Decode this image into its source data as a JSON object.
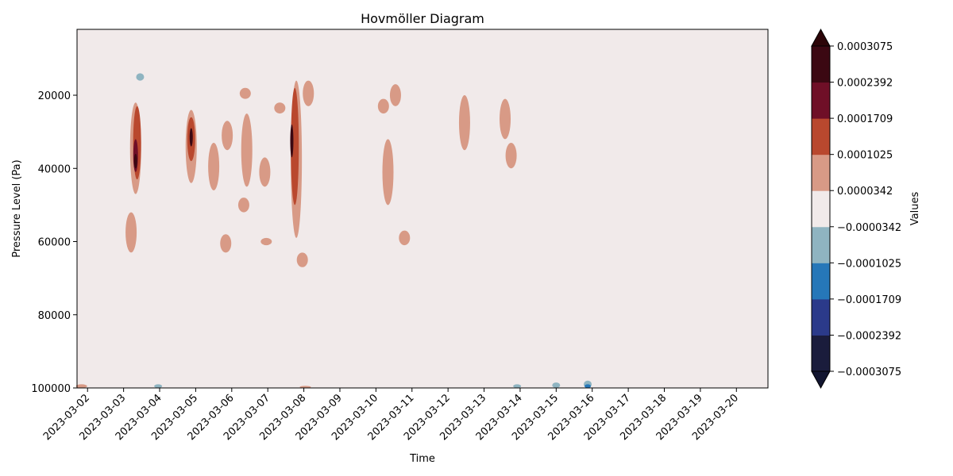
{
  "chart_data": {
    "type": "heatmap",
    "subtype": "filled-contour",
    "title": "Hovmöller Diagram",
    "xlabel": "Time",
    "ylabel": "Pressure Level (Pa)",
    "colorbar_label": "Values",
    "x_ticks": [
      "2023-03-02",
      "2023-03-03",
      "2023-03-04",
      "2023-03-05",
      "2023-03-06",
      "2023-03-07",
      "2023-03-08",
      "2023-03-09",
      "2023-03-10",
      "2023-03-11",
      "2023-03-12",
      "2023-03-13",
      "2023-03-14",
      "2023-03-15",
      "2023-03-16",
      "2023-03-17",
      "2023-03-18",
      "2023-03-19",
      "2023-03-20"
    ],
    "x_range": [
      "2023-03-01T17:00",
      "2023-03-20T21:00"
    ],
    "y_ticks": [
      20000,
      40000,
      60000,
      80000,
      100000
    ],
    "y_tick_labels": [
      "20000",
      "40000",
      "60000",
      "80000",
      "100000"
    ],
    "y_range": [
      2000,
      100000
    ],
    "y_inverted": true,
    "grid": false,
    "colorbar_extend": "both",
    "levels": [
      -0.0003075,
      -0.0002392,
      -0.0001709,
      -0.0001025,
      -3.42e-05,
      3.42e-05,
      0.0001025,
      0.0001709,
      0.0002392,
      0.0003075
    ],
    "colorbar_tick_labels": [
      "−0.0003075",
      "−0.0002392",
      "−0.0001709",
      "−0.0001025",
      "−0.0000342",
      "0.0000342",
      "0.0001025",
      "0.0001709",
      "0.0002392",
      "0.0003075"
    ],
    "band_colors": [
      "#1a1c3c",
      "#2b3a8a",
      "#2677b8",
      "#8fb4c1",
      "#f1eaea",
      "#d89a86",
      "#b9482e",
      "#6f0f27",
      "#3b0812"
    ],
    "extend_colors": {
      "under": "#121530",
      "over": "#2c0508"
    },
    "background_color": "#f1eaea",
    "features": [
      {
        "t": "2023-03-03T08:00",
        "p_min": 22000,
        "p_max": 47000,
        "level": 5
      },
      {
        "t": "2023-03-03T09:00",
        "p_min": 23000,
        "p_max": 43000,
        "level": 6
      },
      {
        "t": "2023-03-03T08:00",
        "p_min": 32000,
        "p_max": 41000,
        "level": 7
      },
      {
        "t": "2023-03-03T08:00",
        "p_min": 36000,
        "p_max": 40000,
        "level": 8
      },
      {
        "t": "2023-03-03T05:00",
        "p_min": 52000,
        "p_max": 63000,
        "level": 5
      },
      {
        "t": "2023-03-03T11:00",
        "p_min": 14000,
        "p_max": 16000,
        "level": 3
      },
      {
        "t": "2023-03-04T21:00",
        "p_min": 24000,
        "p_max": 44000,
        "level": 5
      },
      {
        "t": "2023-03-04T21:00",
        "p_min": 26000,
        "p_max": 38000,
        "level": 6
      },
      {
        "t": "2023-03-04T21:00",
        "p_min": 29000,
        "p_max": 34000,
        "level": 8
      },
      {
        "t": "2023-03-05T12:00",
        "p_min": 33000,
        "p_max": 46000,
        "level": 5
      },
      {
        "t": "2023-03-05T21:00",
        "p_min": 27000,
        "p_max": 35000,
        "level": 5
      },
      {
        "t": "2023-03-06T10:00",
        "p_min": 25000,
        "p_max": 45000,
        "level": 5
      },
      {
        "t": "2023-03-06T22:00",
        "p_min": 37000,
        "p_max": 45000,
        "level": 5
      },
      {
        "t": "2023-03-06T08:00",
        "p_min": 48000,
        "p_max": 52000,
        "level": 5
      },
      {
        "t": "2023-03-05T20:00",
        "p_min": 58000,
        "p_max": 63000,
        "level": 5
      },
      {
        "t": "2023-03-06T23:00",
        "p_min": 59000,
        "p_max": 61000,
        "level": 5
      },
      {
        "t": "2023-03-06T09:00",
        "p_min": 18000,
        "p_max": 21000,
        "level": 5
      },
      {
        "t": "2023-03-07T08:00",
        "p_min": 22000,
        "p_max": 25000,
        "level": 5
      },
      {
        "t": "2023-03-07T19:00",
        "p_min": 16000,
        "p_max": 59000,
        "level": 5
      },
      {
        "t": "2023-03-07T18:00",
        "p_min": 18000,
        "p_max": 50000,
        "level": 6
      },
      {
        "t": "2023-03-07T16:00",
        "p_min": 28000,
        "p_max": 37000,
        "level": 8
      },
      {
        "t": "2023-03-08T03:00",
        "p_min": 16000,
        "p_max": 23000,
        "level": 5
      },
      {
        "t": "2023-03-07T23:00",
        "p_min": 63000,
        "p_max": 67000,
        "level": 5
      },
      {
        "t": "2023-03-10T05:00",
        "p_min": 21000,
        "p_max": 25000,
        "level": 5
      },
      {
        "t": "2023-03-10T13:00",
        "p_min": 17000,
        "p_max": 23000,
        "level": 5
      },
      {
        "t": "2023-03-10T08:00",
        "p_min": 32000,
        "p_max": 50000,
        "level": 5
      },
      {
        "t": "2023-03-10T19:00",
        "p_min": 57000,
        "p_max": 61000,
        "level": 5
      },
      {
        "t": "2023-03-12T11:00",
        "p_min": 20000,
        "p_max": 35000,
        "level": 5
      },
      {
        "t": "2023-03-13T14:00",
        "p_min": 21000,
        "p_max": 32000,
        "level": 5
      },
      {
        "t": "2023-03-13T18:00",
        "p_min": 33000,
        "p_max": 40000,
        "level": 5
      },
      {
        "t": "2023-03-01T20:00",
        "p_min": 99000,
        "p_max": 100000,
        "level": 5
      },
      {
        "t": "2023-03-03T23:00",
        "p_min": 99000,
        "p_max": 100000,
        "level": 3
      },
      {
        "t": "2023-03-08T01:00",
        "p_min": 99500,
        "p_max": 100000,
        "level": 5
      },
      {
        "t": "2023-03-13T22:00",
        "p_min": 99000,
        "p_max": 100000,
        "level": 3
      },
      {
        "t": "2023-03-15T00:00",
        "p_min": 98500,
        "p_max": 100000,
        "level": 3
      },
      {
        "t": "2023-03-15T21:00",
        "p_min": 98000,
        "p_max": 100000,
        "level": 3
      },
      {
        "t": "2023-03-15T21:00",
        "p_min": 99000,
        "p_max": 100000,
        "level": 2
      }
    ]
  }
}
